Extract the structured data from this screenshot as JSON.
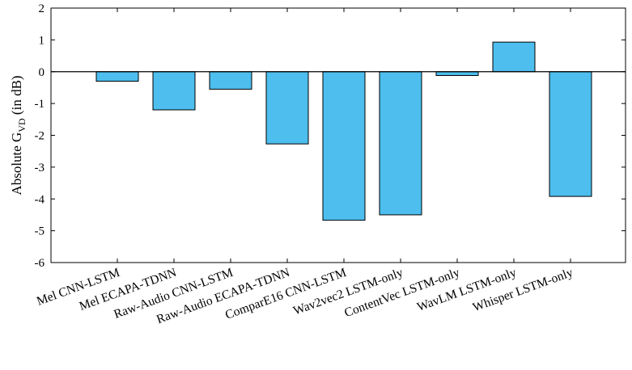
{
  "chart_data": {
    "type": "bar",
    "categories": [
      "Mel CNN-LSTM",
      "Mel ECAPA-TDNN",
      "Raw-Audio CNN-LSTM",
      "Raw-Audio ECAPA-TDNN",
      "ComparE16 CNN-LSTM",
      "Wav2vec2 LSTM-only",
      "ContentVec LSTM-only",
      "WavLM LSTM-only",
      "Whisper LSTM-only"
    ],
    "values": [
      -0.3,
      -1.2,
      -0.55,
      -2.27,
      -4.67,
      -4.5,
      -0.12,
      0.93,
      -3.92
    ],
    "ylabel": {
      "main": "Absolute G",
      "subscript": "VD",
      "suffix": " (in dB)"
    },
    "xlabel": "",
    "ylim": [
      -6,
      2
    ],
    "yticks": [
      -6,
      -5,
      -4,
      -3,
      -2,
      -1,
      0,
      1,
      2
    ],
    "ytick_labels": [
      "-6",
      "-5",
      "-4",
      "-3",
      "-2",
      "-1",
      "0",
      "1",
      "2"
    ],
    "grid": false,
    "bar_color": "#4DBEEE",
    "bar_edge_color": "#000000",
    "box": true
  }
}
